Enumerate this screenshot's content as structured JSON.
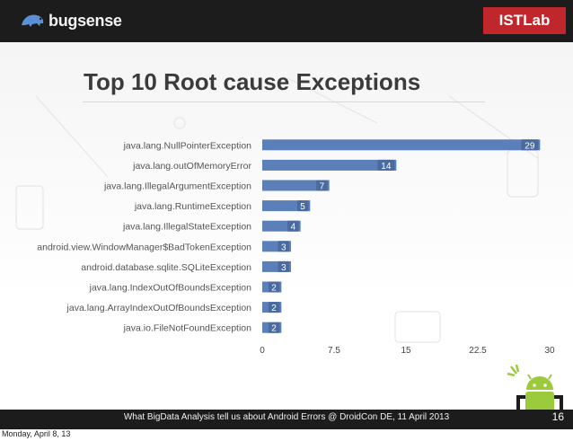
{
  "header": {
    "logo_text": "bugsense",
    "badge": "ISTLab"
  },
  "slide_title": "Top 10 Root cause Exceptions",
  "footer": {
    "caption": "What BigData Analysis tell us about Android Errors @ DroidCon DE, 11 April 2013",
    "page_number": "16"
  },
  "datestamp": "Monday, April 8, 13",
  "colors": {
    "bar": "#5b7fb8",
    "bar_label_bg": "#4a6aa0",
    "badge": "#c0272d",
    "android_green": "#9bcb3c"
  },
  "chart_data": {
    "type": "bar",
    "orientation": "horizontal",
    "categories": [
      "java.lang.NullPointerException",
      "java.lang.outOfMemoryError",
      "java.lang.IllegalArgumentException",
      "java.lang.RuntimeException",
      "java.lang.IllegalStateException",
      "android.view.WindowManager$BadTokenException",
      "android.database.sqlite.SQLiteException",
      "java.lang.IndexOutOfBoundsException",
      "java.lang.ArrayIndexOutOfBoundsException",
      "java.io.FileNotFoundException"
    ],
    "values": [
      29,
      14,
      7,
      5,
      4,
      3,
      3,
      2,
      2,
      2
    ],
    "xlim": [
      0,
      30
    ],
    "xticks": [
      "0",
      "7.5",
      "15",
      "22.5",
      "30"
    ],
    "xlabel": "",
    "ylabel": "",
    "grid": false,
    "legend": "none"
  }
}
